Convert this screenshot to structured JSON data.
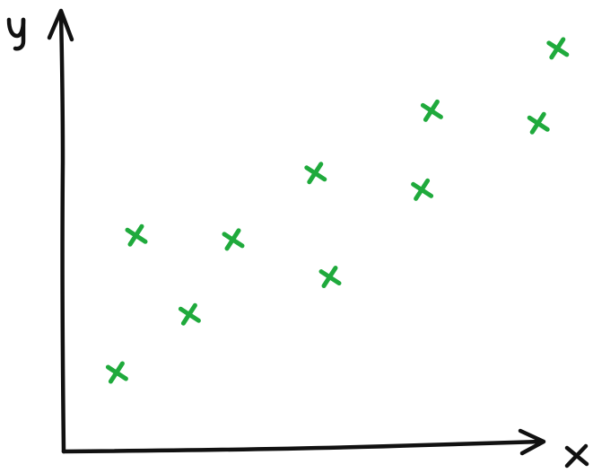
{
  "chart_data": {
    "type": "scatter",
    "title": "",
    "xlabel": "x",
    "ylabel": "y",
    "grid": false,
    "legend": "none",
    "xlim": [
      0,
      10
    ],
    "ylim": [
      0,
      10
    ],
    "series": [
      {
        "marker": "x",
        "color": "#1faa3c",
        "points": [
          {
            "x": 1.1,
            "y": 1.9
          },
          {
            "x": 1.5,
            "y": 5.2
          },
          {
            "x": 2.6,
            "y": 3.3
          },
          {
            "x": 3.5,
            "y": 5.1
          },
          {
            "x": 5.2,
            "y": 6.7
          },
          {
            "x": 5.5,
            "y": 4.2
          },
          {
            "x": 7.4,
            "y": 6.3
          },
          {
            "x": 7.6,
            "y": 8.2
          },
          {
            "x": 9.8,
            "y": 7.9
          },
          {
            "x": 10.2,
            "y": 9.7
          }
        ]
      }
    ]
  }
}
